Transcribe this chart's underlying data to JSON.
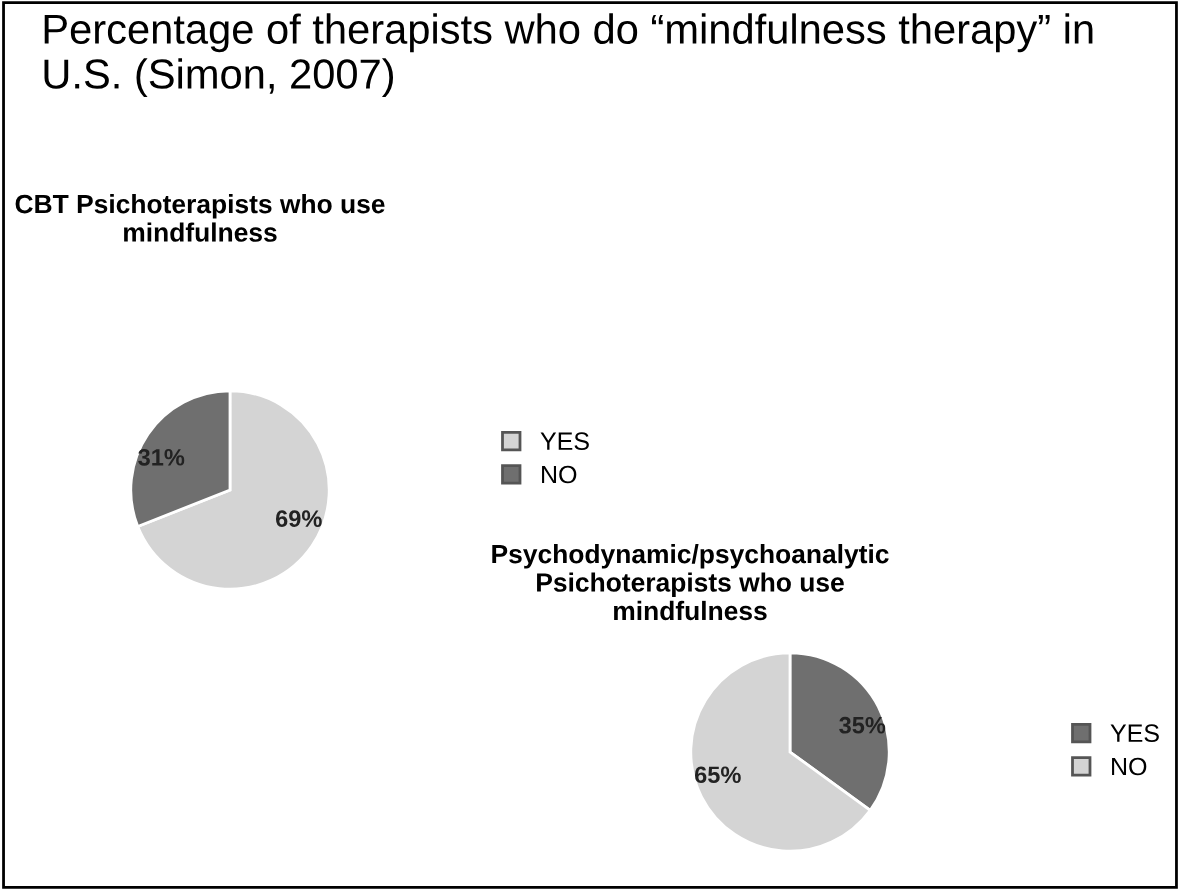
{
  "chart_data": [
    {
      "type": "pie",
      "title": "Percentage of therapists who do “mindfulness therapy” in U.S. (Simon, 2007)",
      "subtitle": "CBT Psichoterapists who use mindfulness",
      "categories": [
        "YES",
        "NO"
      ],
      "values": [
        69,
        31
      ],
      "value_labels": [
        "69%",
        "31%"
      ],
      "colors": [
        "#d4d4d4",
        "#6f6f6f"
      ],
      "legend": "right"
    },
    {
      "type": "pie",
      "title": "Psychodynamic/psychoanalytic Psichoterapists who use mindfulness",
      "categories": [
        "YES",
        "NO"
      ],
      "values": [
        35,
        65
      ],
      "value_labels": [
        "35%",
        "65%"
      ],
      "colors": [
        "#6f6f6f",
        "#d4d4d4"
      ],
      "legend": "right"
    }
  ]
}
